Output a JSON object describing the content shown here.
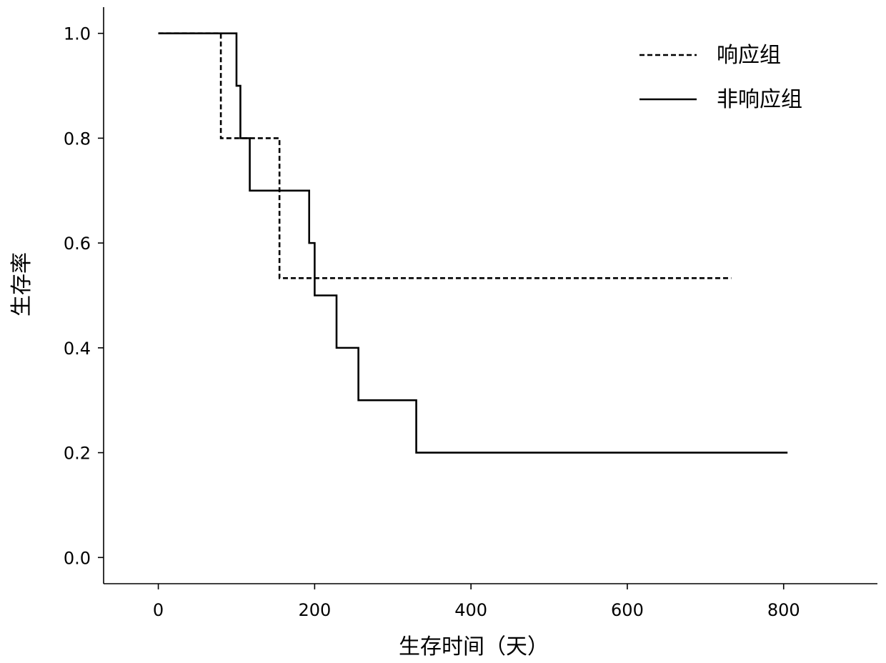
{
  "chart_data": {
    "type": "line",
    "step": true,
    "xlabel": "生存时间（天）",
    "ylabel": "生存率",
    "xlim": [
      -70,
      920
    ],
    "ylim": [
      -0.05,
      1.05
    ],
    "xticks": [
      0,
      200,
      400,
      600,
      800
    ],
    "xtick_labels": [
      "0",
      "200",
      "400",
      "600",
      "800"
    ],
    "yticks": [
      0.0,
      0.2,
      0.4,
      0.6,
      0.8,
      1.0
    ],
    "ytick_labels": [
      "0.0",
      "0.2",
      "0.4",
      "0.6",
      "0.8",
      "1.0"
    ],
    "grid": false,
    "legend_position": "top-right",
    "series": [
      {
        "name": "响应组",
        "style": "dashed",
        "color": "#000000",
        "x": [
          0,
          80,
          155,
          733
        ],
        "y": [
          1.0,
          0.8,
          0.533,
          0.533
        ]
      },
      {
        "name": "非响应组",
        "style": "solid",
        "color": "#000000",
        "x": [
          0,
          100,
          105,
          117,
          193,
          200,
          228,
          256,
          330,
          805
        ],
        "y": [
          1.0,
          0.9,
          0.8,
          0.7,
          0.6,
          0.5,
          0.4,
          0.3,
          0.2,
          0.2
        ]
      }
    ]
  }
}
